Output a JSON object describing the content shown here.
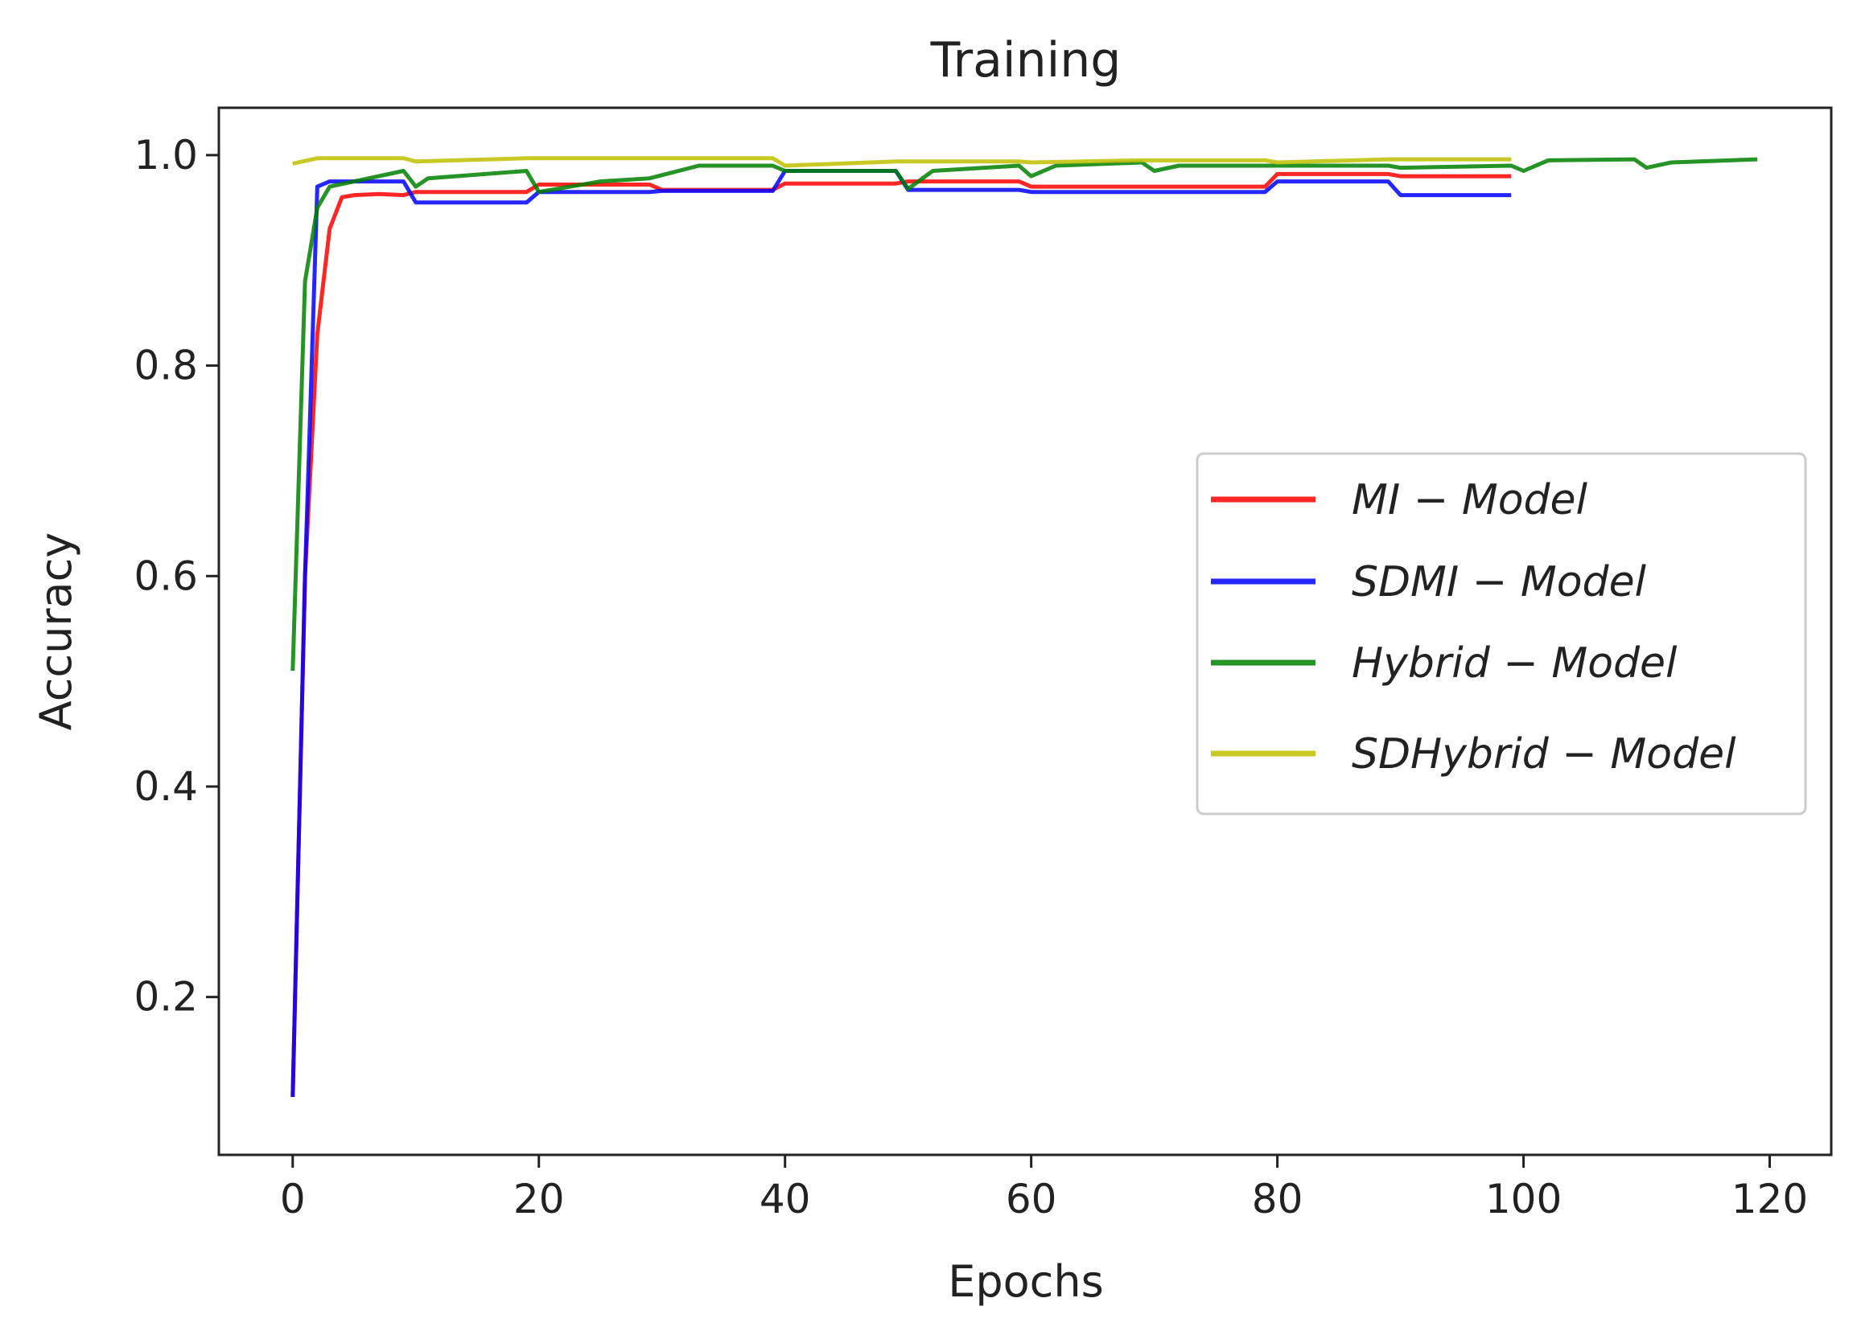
{
  "chart_data": {
    "type": "line",
    "title": "Training",
    "xlabel": "Epochs",
    "ylabel": "Accuracy",
    "xlim": [
      -6,
      125
    ],
    "ylim": [
      0.05,
      1.045
    ],
    "xticks": [
      0,
      20,
      40,
      60,
      80,
      100,
      120
    ],
    "yticks": [
      0.2,
      0.4,
      0.6,
      0.8,
      1.0
    ],
    "xtick_labels": [
      "0",
      "20",
      "40",
      "60",
      "80",
      "100",
      "120"
    ],
    "ytick_labels": [
      "0.2",
      "0.4",
      "0.6",
      "0.8",
      "1.0"
    ],
    "grid": false,
    "legend_position": "center-right",
    "series": [
      {
        "name": "MI − Model",
        "color": "#ff0000",
        "x": [
          0,
          1,
          2,
          3,
          4,
          5,
          7,
          9,
          10,
          19,
          20,
          29,
          30,
          39,
          40,
          49,
          50,
          59,
          60,
          69,
          70,
          79,
          80,
          89,
          90,
          99
        ],
        "y": [
          0.105,
          0.6,
          0.83,
          0.93,
          0.96,
          0.962,
          0.963,
          0.962,
          0.965,
          0.965,
          0.972,
          0.972,
          0.967,
          0.967,
          0.973,
          0.973,
          0.975,
          0.975,
          0.97,
          0.97,
          0.97,
          0.97,
          0.982,
          0.982,
          0.98,
          0.98
        ]
      },
      {
        "name": "SDMI − Model",
        "color": "#0000ff",
        "x": [
          0,
          1,
          2,
          3,
          5,
          9,
          10,
          19,
          20,
          29,
          30,
          39,
          40,
          49,
          50,
          59,
          60,
          69,
          70,
          79,
          80,
          89,
          90,
          99
        ],
        "y": [
          0.105,
          0.6,
          0.97,
          0.975,
          0.975,
          0.975,
          0.955,
          0.955,
          0.965,
          0.965,
          0.966,
          0.966,
          0.985,
          0.985,
          0.967,
          0.967,
          0.965,
          0.965,
          0.965,
          0.965,
          0.975,
          0.975,
          0.962,
          0.962
        ]
      },
      {
        "name": "Hybrid − Model",
        "color": "#008000",
        "x": [
          0,
          1,
          2,
          3,
          5,
          9,
          10,
          11,
          19,
          20,
          25,
          29,
          33,
          39,
          40,
          49,
          50,
          52,
          59,
          60,
          62,
          69,
          70,
          72,
          79,
          80,
          89,
          90,
          99,
          100,
          102,
          109,
          110,
          112,
          119
        ],
        "y": [
          0.51,
          0.88,
          0.95,
          0.97,
          0.975,
          0.985,
          0.97,
          0.978,
          0.985,
          0.965,
          0.975,
          0.978,
          0.99,
          0.99,
          0.985,
          0.985,
          0.968,
          0.985,
          0.99,
          0.98,
          0.99,
          0.993,
          0.985,
          0.99,
          0.99,
          0.99,
          0.99,
          0.988,
          0.99,
          0.985,
          0.995,
          0.996,
          0.988,
          0.993,
          0.996
        ]
      },
      {
        "name": "SDHybrid − Model",
        "color": "#bfbf00",
        "x": [
          0,
          2,
          9,
          10,
          19,
          20,
          39,
          40,
          49,
          50,
          59,
          60,
          69,
          70,
          79,
          80,
          89,
          90,
          99
        ],
        "y": [
          0.992,
          0.997,
          0.997,
          0.994,
          0.997,
          0.997,
          0.997,
          0.99,
          0.994,
          0.994,
          0.994,
          0.993,
          0.995,
          0.995,
          0.995,
          0.993,
          0.996,
          0.996,
          0.996
        ]
      }
    ]
  }
}
